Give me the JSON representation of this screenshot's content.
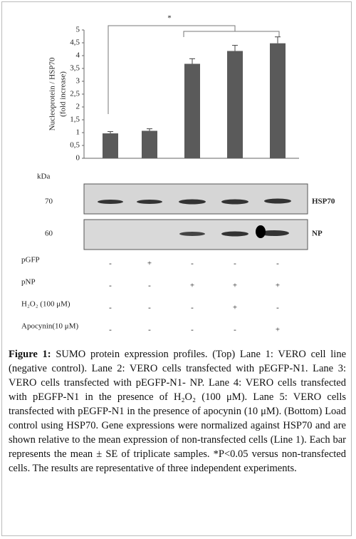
{
  "chart_data": {
    "type": "bar",
    "annotation": "*",
    "y_label": [
      "Nucleoprotein / HSP70",
      "(fold increase)"
    ],
    "categories": [
      null,
      null,
      null,
      null,
      null
    ],
    "values": [
      0.97,
      1.07,
      3.68,
      4.18,
      4.48
    ],
    "errors": [
      0.07,
      0.08,
      0.2,
      0.22,
      0.25
    ],
    "color": "#5a5a5a",
    "ylim": [
      0,
      5
    ],
    "yticks": [
      0,
      {
        "value": 0.5,
        "label": "0,5"
      },
      1,
      {
        "value": 1.5,
        "label": "1,5"
      },
      2,
      {
        "value": 2.5,
        "label": "2,5"
      },
      3,
      {
        "value": 3.5,
        "label": "3,5"
      },
      4,
      {
        "value": 4.5,
        "label": "4,5"
      },
      5
    ]
  },
  "blot": {
    "unit": "kDa",
    "rows": [
      {
        "size": "70",
        "name": "HSP70"
      },
      {
        "size": "60",
        "name": "NP"
      }
    ]
  },
  "conditions": {
    "rows": [
      {
        "label": "pGFP",
        "lanes": [
          "-",
          "+",
          "-",
          "-",
          "-"
        ]
      },
      {
        "label": "pNP",
        "lanes": [
          "-",
          "-",
          "+",
          "+",
          "+"
        ]
      },
      {
        "label": "H₂O₂ (100 μM)",
        "lanes": [
          "-",
          "-",
          "-",
          "+",
          "-"
        ]
      },
      {
        "label": "Apocynin(10 μM)",
        "lanes": [
          "-",
          "-",
          "-",
          "-",
          "+"
        ]
      }
    ]
  },
  "caption": {
    "label": "Figure 1:",
    "text": "SUMO protein expression profiles. (Top) Lane 1: VERO cell line (negative control). Lane 2: VERO cells transfected with pEGFP-N1. Lane 3: VERO cells transfected with pEGFP-N1- NP. Lane 4: VERO cells transfected with pEGFP-N1 in the presence of H₂O₂ (100 μM). Lane 5: VERO cells transfected with pEGFP-N1 in the presence of apocynin (10 μM). (Bottom) Load control using HSP70. Gene expressions were normalized against HSP70 and are shown relative to the mean expression of non-transfected cells (Line 1). Each bar represents the mean ± SE of triplicate samples. *P<0.05 versus non-transfected cells. The results are representative of three independent experiments."
  }
}
